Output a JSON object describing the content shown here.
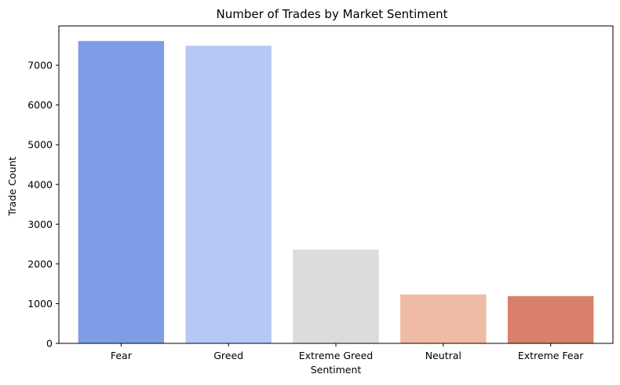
{
  "chart_data": {
    "type": "bar",
    "title": "Number of Trades by Market Sentiment",
    "xlabel": "Sentiment",
    "ylabel": "Trade Count",
    "categories": [
      "Fear",
      "Greed",
      "Extreme Greed",
      "Neutral",
      "Extreme Fear"
    ],
    "values": [
      7610,
      7490,
      2360,
      1230,
      1190
    ],
    "colors": [
      "#7f9ce6",
      "#b5c9f4",
      "#dcdcdc",
      "#efbba4",
      "#d9806d"
    ],
    "ylim": [
      0,
      7990
    ],
    "yticks": [
      0,
      1000,
      2000,
      3000,
      4000,
      5000,
      6000,
      7000
    ],
    "grid": false,
    "legend": "none"
  }
}
